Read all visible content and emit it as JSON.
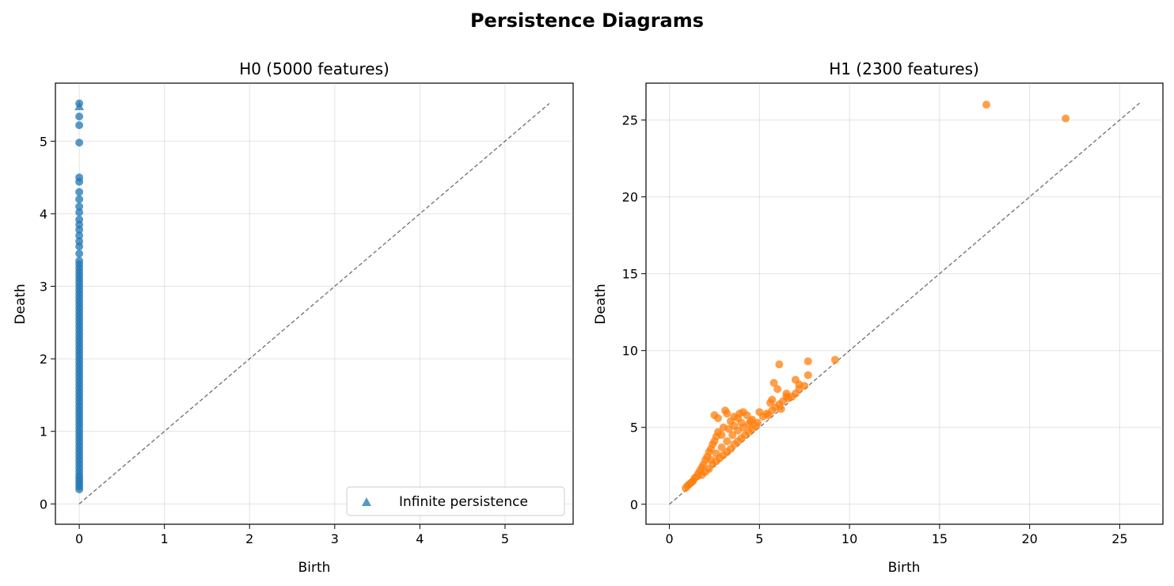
{
  "figure": {
    "title": "Persistence Diagrams"
  },
  "chart_data": [
    {
      "type": "scatter",
      "title": "H0 (5000 features)",
      "xlabel": "Birth",
      "ylabel": "Death",
      "xlim": [
        -0.28,
        5.8
      ],
      "ylim": [
        -0.28,
        5.8
      ],
      "xticks": [
        0,
        1,
        2,
        3,
        4,
        5
      ],
      "yticks": [
        0,
        1,
        2,
        3,
        4,
        5
      ],
      "grid": true,
      "diagonal": [
        0,
        5.52
      ],
      "legend": {
        "position": "lower-right",
        "entries": [
          "Infinite persistence"
        ]
      },
      "series": [
        {
          "name": "",
          "color": "#1f77b4",
          "marker": "circle",
          "x_constant": 0,
          "y": [
            0.2,
            0.24,
            0.28,
            0.32,
            0.36,
            0.4,
            0.45,
            0.5,
            0.55,
            0.6,
            0.65,
            0.7,
            0.75,
            0.8,
            0.85,
            0.9,
            0.95,
            1.0,
            1.05,
            1.1,
            1.15,
            1.2,
            1.25,
            1.3,
            1.35,
            1.4,
            1.45,
            1.5,
            1.55,
            1.6,
            1.65,
            1.7,
            1.75,
            1.8,
            1.85,
            1.9,
            1.95,
            2.0,
            2.05,
            2.1,
            2.15,
            2.2,
            2.25,
            2.3,
            2.35,
            2.4,
            2.45,
            2.5,
            2.55,
            2.6,
            2.65,
            2.7,
            2.75,
            2.8,
            2.85,
            2.9,
            2.95,
            3.0,
            3.05,
            3.1,
            3.15,
            3.2,
            3.25,
            3.3,
            3.35,
            3.45,
            3.55,
            3.62,
            3.7,
            3.78,
            3.85,
            3.92,
            4.02,
            4.1,
            4.2,
            4.3,
            4.44,
            4.5,
            4.98,
            5.22,
            5.34,
            5.52
          ]
        },
        {
          "name": "Infinite persistence",
          "color": "#1f77b4",
          "marker": "triangle",
          "points": [
            [
              0,
              5.48
            ]
          ]
        }
      ]
    },
    {
      "type": "scatter",
      "title": "H1 (2300 features)",
      "xlabel": "Birth",
      "ylabel": "Death",
      "xlim": [
        -1.3,
        27.4
      ],
      "ylim": [
        -1.3,
        27.4
      ],
      "xticks": [
        0,
        5,
        10,
        15,
        20,
        25
      ],
      "yticks": [
        0,
        5,
        10,
        15,
        20,
        25
      ],
      "grid": true,
      "diagonal": [
        0,
        26.1
      ],
      "series": [
        {
          "name": "",
          "color": "#ff7f0e",
          "marker": "circle",
          "points": [
            [
              0.9,
              1.05
            ],
            [
              1.0,
              1.2
            ],
            [
              1.1,
              1.3
            ],
            [
              1.2,
              1.4
            ],
            [
              1.3,
              1.5
            ],
            [
              1.4,
              1.7
            ],
            [
              1.5,
              1.8
            ],
            [
              1.6,
              2.0
            ],
            [
              1.7,
              2.2
            ],
            [
              1.8,
              2.4
            ],
            [
              1.9,
              2.6
            ],
            [
              2.0,
              2.9
            ],
            [
              2.1,
              3.1
            ],
            [
              2.2,
              3.4
            ],
            [
              2.3,
              3.6
            ],
            [
              2.4,
              3.9
            ],
            [
              2.5,
              4.1
            ],
            [
              2.6,
              4.4
            ],
            [
              2.7,
              4.7
            ],
            [
              2.5,
              5.8
            ],
            [
              2.7,
              5.6
            ],
            [
              3.1,
              6.1
            ],
            [
              3.2,
              5.9
            ],
            [
              3.4,
              5.4
            ],
            [
              3.6,
              5.7
            ],
            [
              3.9,
              5.9
            ],
            [
              4.1,
              6.0
            ],
            [
              4.3,
              5.8
            ],
            [
              4.6,
              5.5
            ],
            [
              5.0,
              6.0
            ],
            [
              5.2,
              5.7
            ],
            [
              5.4,
              5.9
            ],
            [
              1.8,
              1.9
            ],
            [
              2.0,
              2.1
            ],
            [
              2.2,
              2.3
            ],
            [
              2.4,
              2.6
            ],
            [
              2.6,
              2.8
            ],
            [
              2.8,
              3.0
            ],
            [
              3.0,
              3.2
            ],
            [
              3.2,
              3.4
            ],
            [
              3.4,
              3.6
            ],
            [
              3.6,
              3.9
            ],
            [
              3.8,
              4.1
            ],
            [
              4.0,
              4.3
            ],
            [
              4.2,
              4.5
            ],
            [
              4.4,
              4.7
            ],
            [
              4.6,
              4.9
            ],
            [
              4.8,
              5.1
            ],
            [
              2.3,
              2.9
            ],
            [
              2.6,
              3.3
            ],
            [
              2.9,
              3.7
            ],
            [
              3.2,
              4.1
            ],
            [
              3.5,
              4.5
            ],
            [
              3.8,
              4.8
            ],
            [
              4.1,
              5.0
            ],
            [
              4.4,
              5.2
            ],
            [
              2.9,
              4.5
            ],
            [
              3.3,
              4.9
            ],
            [
              3.6,
              5.1
            ],
            [
              4.0,
              5.3
            ],
            [
              3.0,
              5.0
            ],
            [
              3.8,
              5.6
            ],
            [
              4.5,
              5.4
            ],
            [
              4.9,
              5.3
            ],
            [
              5.5,
              5.8
            ],
            [
              5.7,
              6.1
            ],
            [
              5.9,
              6.3
            ],
            [
              6.1,
              6.5
            ],
            [
              6.3,
              6.7
            ],
            [
              6.5,
              7.0
            ],
            [
              6.5,
              7.2
            ],
            [
              6.8,
              7.0
            ],
            [
              7.0,
              7.2
            ],
            [
              7.2,
              7.5
            ],
            [
              7.5,
              7.7
            ],
            [
              6.6,
              6.9
            ],
            [
              5.6,
              6.6
            ],
            [
              5.7,
              6.8
            ],
            [
              6.0,
              7.5
            ],
            [
              6.2,
              6.2
            ],
            [
              5.8,
              7.9
            ],
            [
              6.1,
              9.1
            ],
            [
              7.0,
              8.1
            ],
            [
              7.2,
              7.8
            ],
            [
              7.7,
              8.4
            ],
            [
              7.7,
              9.3
            ],
            [
              9.2,
              9.4
            ],
            [
              17.6,
              26.0
            ],
            [
              22.0,
              25.1
            ]
          ]
        }
      ]
    }
  ]
}
